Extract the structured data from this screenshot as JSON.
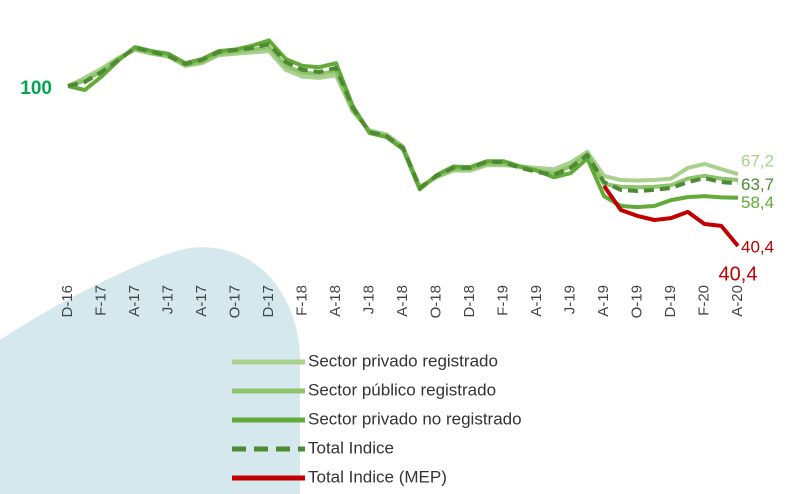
{
  "chart_data": {
    "type": "line",
    "categories": [
      "D-16",
      null,
      "F-17",
      null,
      "A-17",
      null,
      "J-17",
      null,
      "A-17",
      null,
      "O-17",
      null,
      "D-17",
      null,
      "F-18",
      null,
      "A-18",
      null,
      "J-18",
      null,
      "A-18",
      null,
      "O-18",
      null,
      "D-18",
      null,
      "F-19",
      null,
      "A-19",
      null,
      "J-19",
      null,
      "A-19",
      null,
      "O-19",
      null,
      "D-19",
      null,
      "F-20",
      null,
      "A-20"
    ],
    "ylim": [
      35,
      120
    ],
    "series": [
      {
        "name": "Sector privado registrado",
        "color": "#a9d18e",
        "dashed": false,
        "values": [
          100,
          103,
          106.5,
          110.5,
          113.5,
          112,
          111,
          107.5,
          108.5,
          111.5,
          112,
          112.5,
          113,
          106,
          103.5,
          103,
          104,
          90.5,
          83.5,
          82,
          77.5,
          62.5,
          66,
          68.5,
          68.5,
          70.5,
          70.5,
          70,
          69.5,
          69,
          71.5,
          75.5,
          66.5,
          65,
          64.8,
          65,
          65.5,
          69.5,
          71,
          69,
          67.2
        ],
        "value_labels": [
          null,
          null,
          null,
          null,
          null,
          null,
          null,
          null,
          null,
          null,
          null,
          null,
          null,
          null,
          null,
          null,
          null,
          null,
          null,
          null,
          null,
          null,
          null,
          null,
          null,
          null,
          null,
          null,
          null,
          null,
          null,
          null,
          null,
          null,
          null,
          null,
          null,
          null,
          null,
          null,
          "67,2"
        ]
      },
      {
        "name": "Sector público registrado",
        "color": "#8fc46e",
        "dashed": false,
        "values": [
          100,
          102,
          105.5,
          110,
          113.8,
          112.3,
          111,
          107.8,
          109,
          112,
          112.8,
          113.5,
          114.5,
          107.5,
          105,
          104.5,
          105.5,
          91,
          83,
          81.5,
          77,
          62.2,
          66.2,
          69,
          69,
          71,
          71,
          69.8,
          68.5,
          67.5,
          70,
          74.8,
          63.5,
          62.5,
          62.3,
          62.5,
          63,
          65.5,
          66.5,
          65.5,
          65
        ]
      },
      {
        "name": "Sector privado no registrado",
        "color": "#62ab39",
        "dashed": false,
        "values": [
          100,
          98.5,
          103.5,
          109.5,
          114.5,
          113,
          112,
          108.5,
          110,
          113,
          113.6,
          115,
          117,
          110,
          107.5,
          107,
          108.5,
          92.5,
          82.5,
          81,
          76.5,
          61.5,
          66.8,
          70,
          69.8,
          72,
          72,
          70,
          68.5,
          66,
          67.5,
          73,
          59,
          55.3,
          54.9,
          55.3,
          57.5,
          58.6,
          59,
          58.5,
          58.4
        ],
        "value_labels": [
          null,
          null,
          null,
          null,
          null,
          null,
          null,
          null,
          null,
          null,
          null,
          null,
          null,
          null,
          null,
          null,
          null,
          null,
          null,
          null,
          null,
          null,
          null,
          null,
          null,
          null,
          null,
          null,
          null,
          null,
          null,
          null,
          null,
          null,
          null,
          null,
          null,
          null,
          null,
          null,
          "58,4"
        ]
      },
      {
        "name": "Total Indice",
        "color": "#4e8a33",
        "dashed": true,
        "values": [
          100,
          101.5,
          105.2,
          109.7,
          114.2,
          112.7,
          111.2,
          108.2,
          109.7,
          112.7,
          113.4,
          114.2,
          115.6,
          108.9,
          106.0,
          105.2,
          106.7,
          91.8,
          82.9,
          81.4,
          76.9,
          62.0,
          66.5,
          69.5,
          69.5,
          71.7,
          71.7,
          69.5,
          68.0,
          66.9,
          69.5,
          74.3,
          64.2,
          61.3,
          60.9,
          61.3,
          62.0,
          64.2,
          65.7,
          64.2,
          63.7
        ],
        "value_labels": [
          null,
          null,
          null,
          null,
          null,
          null,
          null,
          null,
          null,
          null,
          null,
          null,
          null,
          null,
          null,
          null,
          null,
          null,
          null,
          null,
          null,
          null,
          null,
          null,
          null,
          null,
          null,
          null,
          null,
          null,
          null,
          null,
          null,
          null,
          null,
          null,
          null,
          null,
          null,
          null,
          "63,7"
        ]
      },
      {
        "name": "Total Indice (MEP)",
        "color": "#c00000",
        "dashed": false,
        "values": [
          null,
          null,
          null,
          null,
          null,
          null,
          null,
          null,
          null,
          null,
          null,
          null,
          null,
          null,
          null,
          null,
          null,
          null,
          null,
          null,
          null,
          null,
          null,
          null,
          null,
          null,
          null,
          null,
          null,
          null,
          null,
          null,
          62.8,
          53.8,
          51.6,
          50.1,
          50.8,
          53.1,
          48.6,
          47.9,
          40.4
        ],
        "value_labels": [
          null,
          null,
          null,
          null,
          null,
          null,
          null,
          null,
          null,
          null,
          null,
          null,
          null,
          null,
          null,
          null,
          null,
          null,
          null,
          null,
          null,
          null,
          null,
          null,
          null,
          null,
          null,
          null,
          null,
          null,
          null,
          null,
          null,
          null,
          null,
          null,
          null,
          null,
          null,
          null,
          "40,4"
        ]
      }
    ],
    "annotation": "40,4"
  }
}
